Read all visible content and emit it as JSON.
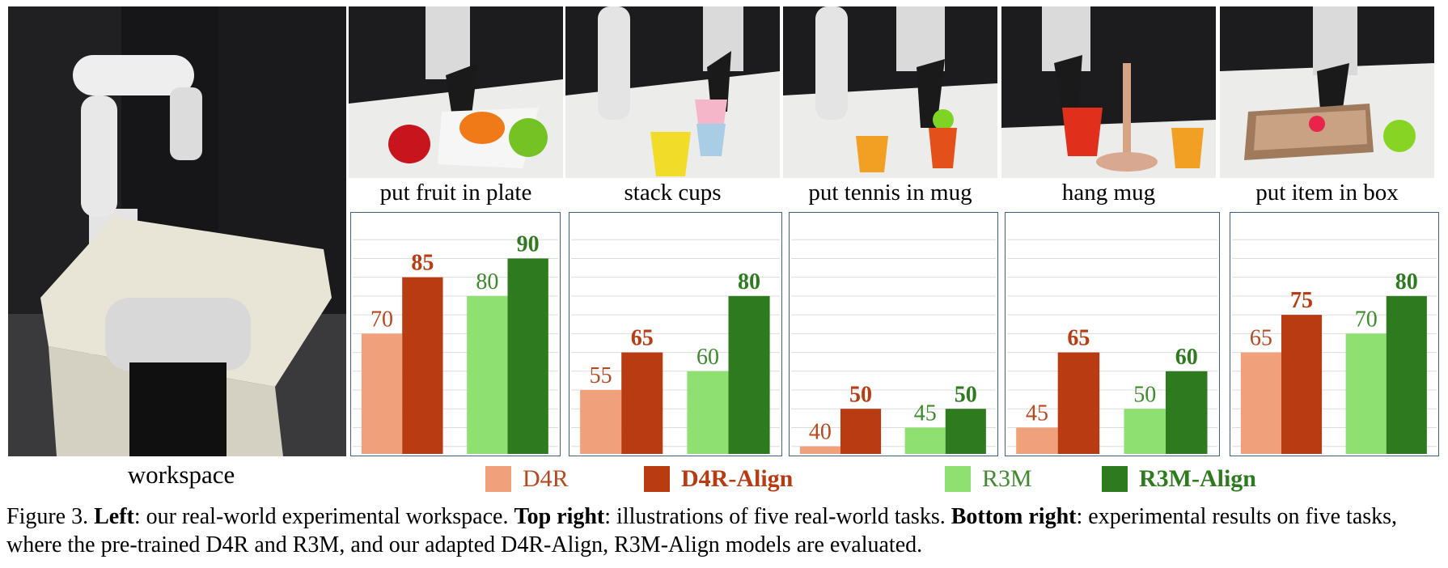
{
  "workspace_label": "workspace",
  "tasks": [
    "put fruit in plate",
    "stack cups",
    "put tennis in mug",
    "hang mug",
    "put item in box"
  ],
  "legend": [
    {
      "label": "D4R",
      "color": "#F0A07A",
      "bold": false
    },
    {
      "label": "D4R-Align",
      "color": "#B83B12",
      "bold": true
    },
    {
      "label": "R3M",
      "color": "#8EE070",
      "bold": false
    },
    {
      "label": "R3M-Align",
      "color": "#2E7A1E",
      "bold": true
    }
  ],
  "chart_data": {
    "type": "bar",
    "ylim": [
      38,
      100
    ],
    "grid": true,
    "legend_position": "bottom",
    "categories": [
      "put fruit in plate",
      "stack cups",
      "put tennis in mug",
      "hang mug",
      "put item in box"
    ],
    "series": [
      {
        "name": "D4R",
        "color": "#F0A07A",
        "label_color": "#B8481E",
        "bold": false,
        "values": [
          70,
          55,
          40,
          45,
          65
        ]
      },
      {
        "name": "D4R-Align",
        "color": "#B83B12",
        "label_color": "#B83B12",
        "bold": true,
        "values": [
          85,
          65,
          50,
          65,
          75
        ]
      },
      {
        "name": "R3M",
        "color": "#8EE070",
        "label_color": "#3E8A2C",
        "bold": false,
        "values": [
          80,
          60,
          45,
          50,
          70
        ]
      },
      {
        "name": "R3M-Align",
        "color": "#2E7A1E",
        "label_color": "#2E7A1E",
        "bold": true,
        "values": [
          90,
          80,
          50,
          60,
          80
        ]
      }
    ]
  },
  "caption": {
    "prefix": "Figure 3.",
    "left_bold": "Left",
    "left_text": ": our real-world experimental workspace.",
    "top_bold": "Top right",
    "top_text": ": illustrations of five real-world tasks.",
    "bottom_bold": "Bottom right",
    "bottom_text": ": experimental results on five tasks, where the pre-trained D4R and R3M, and our adapted D4R-Align, R3M-Align models are evaluated."
  }
}
